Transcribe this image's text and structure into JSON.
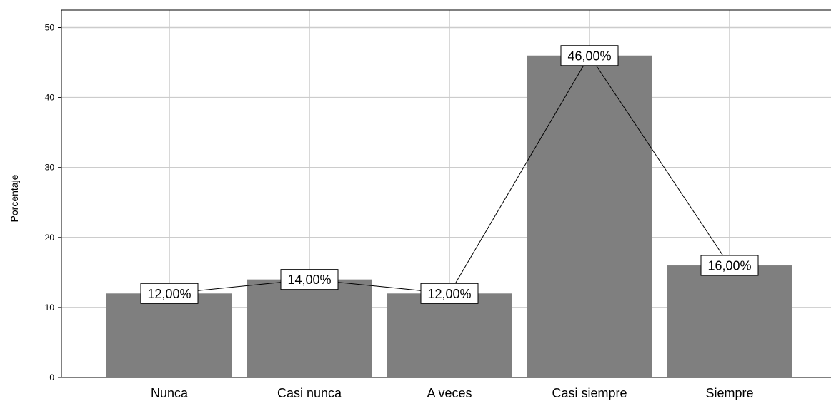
{
  "chart_data": {
    "type": "bar",
    "categories": [
      "Nunca",
      "Casi nunca",
      "A veces",
      "Casi siempre",
      "Siempre"
    ],
    "values": [
      12,
      14,
      12,
      46,
      16
    ],
    "data_labels": [
      "12,00%",
      "14,00%",
      "12,00%",
      "46,00%",
      "16,00%"
    ],
    "ylabel": "Porcentaje",
    "xlabel": "",
    "title": "",
    "ylim": [
      0,
      52.5
    ],
    "yticks": [
      0,
      10,
      20,
      30,
      40,
      50
    ],
    "grid": true,
    "line_overlay": true,
    "colors": {
      "bar": "#7f7f7f",
      "grid": "#cccccc",
      "axis": "#000000",
      "line": "#000000",
      "label_bg": "#ffffff"
    }
  }
}
